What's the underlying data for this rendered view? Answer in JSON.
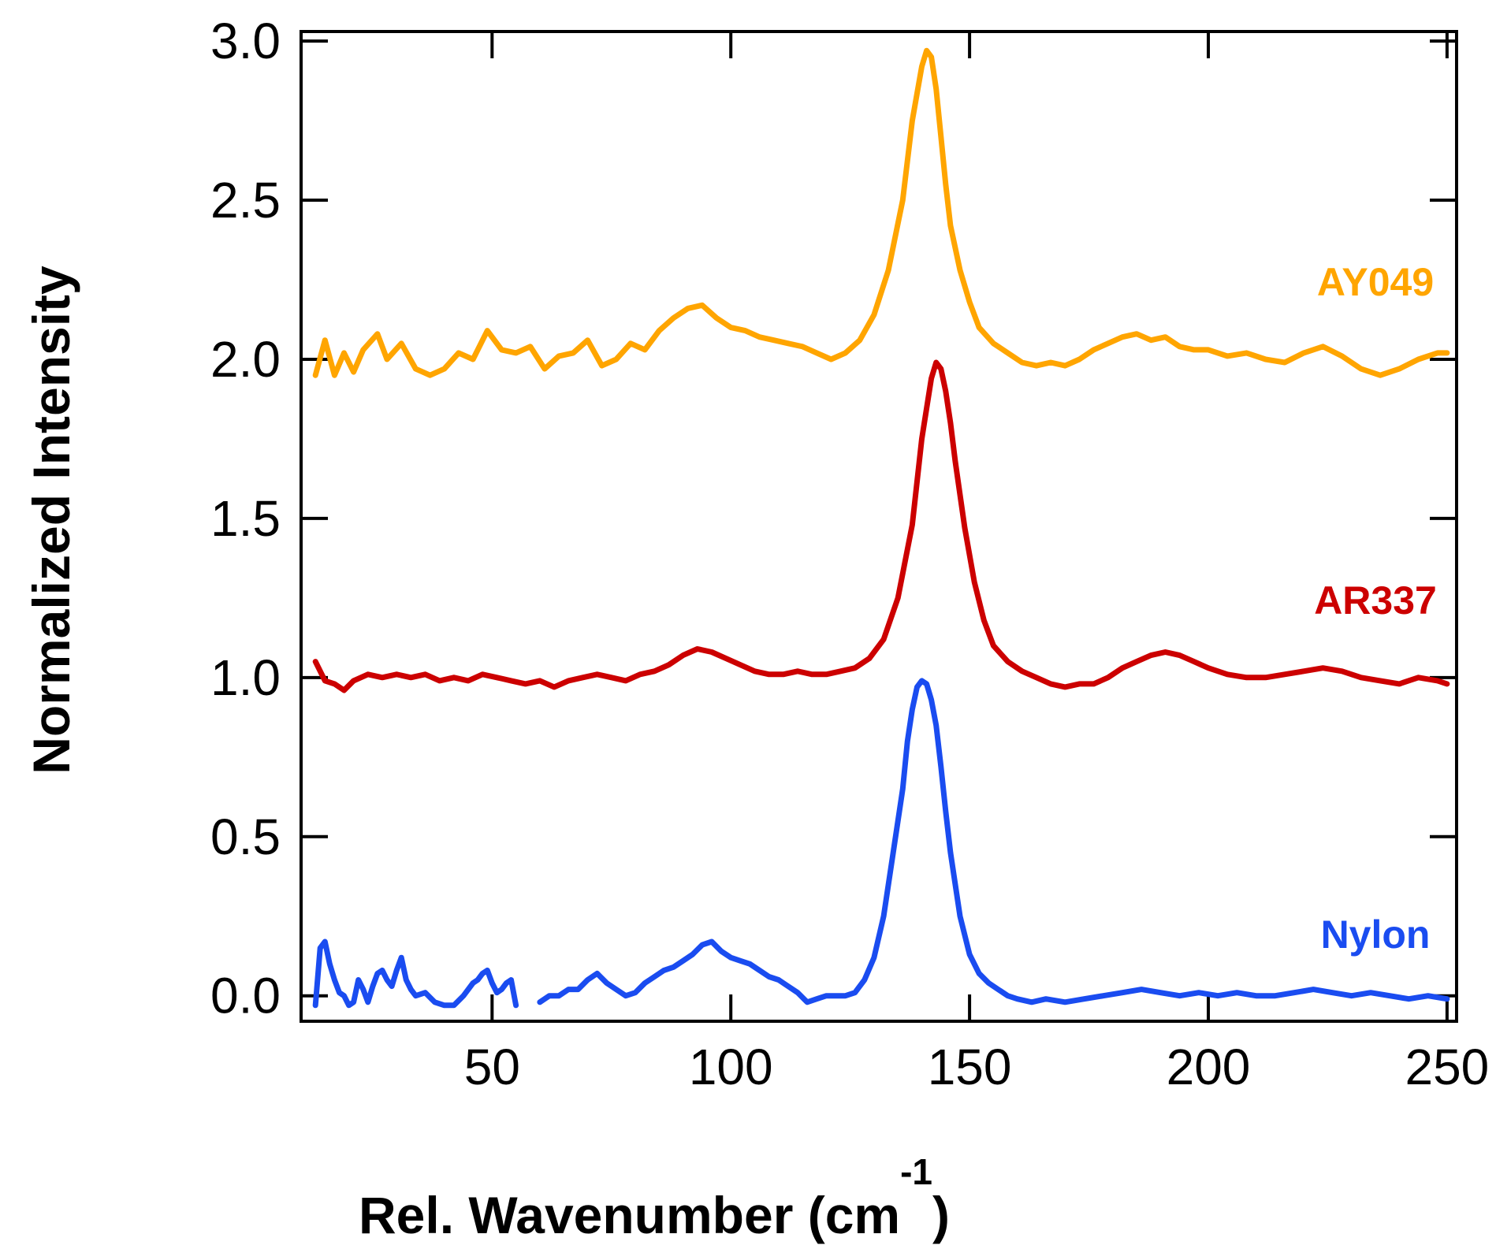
{
  "chart_data": {
    "type": "line",
    "title": "",
    "xlabel": "Rel. Wavenumber (cm",
    "xlabel_superscript": "-1",
    "xlabel_suffix": ")",
    "ylabel": "Normalized Intensity",
    "xlim": [
      10,
      252
    ],
    "ylim": [
      -0.08,
      3.03
    ],
    "xticks": [
      50,
      100,
      150,
      200,
      250
    ],
    "xtick_labels": [
      "50",
      "100",
      "150",
      "200",
      "250"
    ],
    "yticks": [
      0.0,
      0.5,
      1.0,
      1.5,
      2.0,
      2.5,
      3.0
    ],
    "ytick_labels": [
      "0.0",
      "0.5",
      "1.0",
      "1.5",
      "2.0",
      "2.5",
      "3.0"
    ],
    "grid": false,
    "series": [
      {
        "name": "AY049",
        "color": "#FFA500",
        "label_at": [
          235,
          2.2
        ],
        "x": [
          13,
          15,
          17,
          19,
          21,
          23,
          26,
          28,
          31,
          34,
          37,
          40,
          43,
          46,
          49,
          52,
          55,
          58,
          61,
          64,
          67,
          70,
          73,
          76,
          79,
          82,
          85,
          88,
          91,
          94,
          97,
          100,
          103,
          106,
          109,
          112,
          115,
          118,
          121,
          124,
          127,
          130,
          133,
          136,
          138,
          140,
          141,
          142,
          143,
          144,
          145,
          146,
          148,
          150,
          152,
          155,
          158,
          161,
          164,
          167,
          170,
          173,
          176,
          179,
          182,
          185,
          188,
          191,
          194,
          197,
          200,
          204,
          208,
          212,
          216,
          220,
          224,
          228,
          232,
          236,
          240,
          244,
          248,
          250
        ],
        "y": [
          1.95,
          2.06,
          1.95,
          2.02,
          1.96,
          2.03,
          2.08,
          2.0,
          2.05,
          1.97,
          1.95,
          1.97,
          2.02,
          2.0,
          2.09,
          2.03,
          2.02,
          2.04,
          1.97,
          2.01,
          2.02,
          2.06,
          1.98,
          2.0,
          2.05,
          2.03,
          2.09,
          2.13,
          2.16,
          2.17,
          2.13,
          2.1,
          2.09,
          2.07,
          2.06,
          2.05,
          2.04,
          2.02,
          2.0,
          2.02,
          2.06,
          2.14,
          2.28,
          2.5,
          2.75,
          2.92,
          2.97,
          2.95,
          2.85,
          2.7,
          2.55,
          2.42,
          2.28,
          2.18,
          2.1,
          2.05,
          2.02,
          1.99,
          1.98,
          1.99,
          1.98,
          2.0,
          2.03,
          2.05,
          2.07,
          2.08,
          2.06,
          2.07,
          2.04,
          2.03,
          2.03,
          2.01,
          2.02,
          2.0,
          1.99,
          2.02,
          2.04,
          2.01,
          1.97,
          1.95,
          1.97,
          2.0,
          2.02,
          2.02
        ]
      },
      {
        "name": "AR337",
        "color": "#CC0000",
        "label_at": [
          235,
          1.2
        ],
        "x": [
          13,
          15,
          17,
          19,
          21,
          24,
          27,
          30,
          33,
          36,
          39,
          42,
          45,
          48,
          51,
          54,
          57,
          60,
          63,
          66,
          69,
          72,
          75,
          78,
          81,
          84,
          87,
          90,
          93,
          96,
          99,
          102,
          105,
          108,
          111,
          114,
          117,
          120,
          123,
          126,
          129,
          132,
          135,
          138,
          140,
          142,
          143,
          144,
          145,
          146,
          147,
          149,
          151,
          153,
          155,
          158,
          161,
          164,
          167,
          170,
          173,
          176,
          179,
          182,
          185,
          188,
          191,
          194,
          197,
          200,
          204,
          208,
          212,
          216,
          220,
          224,
          228,
          232,
          236,
          240,
          244,
          248,
          250
        ],
        "y": [
          1.05,
          0.99,
          0.98,
          0.96,
          0.99,
          1.01,
          1.0,
          1.01,
          1.0,
          1.01,
          0.99,
          1.0,
          0.99,
          1.01,
          1.0,
          0.99,
          0.98,
          0.99,
          0.97,
          0.99,
          1.0,
          1.01,
          1.0,
          0.99,
          1.01,
          1.02,
          1.04,
          1.07,
          1.09,
          1.08,
          1.06,
          1.04,
          1.02,
          1.01,
          1.01,
          1.02,
          1.01,
          1.01,
          1.02,
          1.03,
          1.06,
          1.12,
          1.25,
          1.48,
          1.75,
          1.94,
          1.99,
          1.97,
          1.9,
          1.8,
          1.68,
          1.47,
          1.3,
          1.18,
          1.1,
          1.05,
          1.02,
          1.0,
          0.98,
          0.97,
          0.98,
          0.98,
          1.0,
          1.03,
          1.05,
          1.07,
          1.08,
          1.07,
          1.05,
          1.03,
          1.01,
          1.0,
          1.0,
          1.01,
          1.02,
          1.03,
          1.02,
          1.0,
          0.99,
          0.98,
          1.0,
          0.99,
          0.98
        ]
      },
      {
        "name": "Nylon",
        "color": "#1A4CF0",
        "label_at": [
          235,
          0.15
        ],
        "x": [
          13,
          14,
          15,
          16,
          17,
          18,
          19,
          20,
          21,
          22,
          23,
          24,
          25,
          26,
          27,
          28,
          29,
          30,
          31,
          32,
          33,
          34,
          36,
          38,
          40,
          42,
          44,
          46,
          47,
          48,
          49,
          50,
          51,
          52,
          53,
          54,
          55,
          58,
          60,
          62,
          64,
          66,
          68,
          70,
          72,
          74,
          76,
          78,
          80,
          82,
          84,
          86,
          88,
          90,
          92,
          94,
          96,
          98,
          100,
          102,
          104,
          106,
          108,
          110,
          112,
          114,
          116,
          118,
          120,
          122,
          124,
          126,
          128,
          130,
          132,
          134,
          136,
          137,
          138,
          139,
          140,
          141,
          142,
          143,
          144,
          145,
          146,
          148,
          150,
          152,
          154,
          156,
          158,
          160,
          163,
          166,
          170,
          174,
          178,
          182,
          186,
          190,
          194,
          198,
          202,
          206,
          210,
          214,
          218,
          222,
          226,
          230,
          234,
          238,
          242,
          246,
          250
        ],
        "y": [
          -0.03,
          0.15,
          0.17,
          0.1,
          0.05,
          0.01,
          0.0,
          -0.03,
          -0.02,
          0.05,
          0.02,
          -0.02,
          0.03,
          0.07,
          0.08,
          0.05,
          0.03,
          0.08,
          0.12,
          0.05,
          0.02,
          0.0,
          0.01,
          -0.02,
          -0.03,
          -0.03,
          0.0,
          0.04,
          0.05,
          0.07,
          0.08,
          0.04,
          0.01,
          0.02,
          0.04,
          0.05,
          -0.03,
          null,
          -0.02,
          0.0,
          0.0,
          0.02,
          0.02,
          0.05,
          0.07,
          0.04,
          0.02,
          0.0,
          0.01,
          0.04,
          0.06,
          0.08,
          0.09,
          0.11,
          0.13,
          0.16,
          0.17,
          0.14,
          0.12,
          0.11,
          0.1,
          0.08,
          0.06,
          0.05,
          0.03,
          0.01,
          -0.02,
          -0.01,
          0.0,
          0.0,
          0.0,
          0.01,
          0.05,
          0.12,
          0.25,
          0.45,
          0.65,
          0.8,
          0.9,
          0.97,
          0.99,
          0.98,
          0.93,
          0.85,
          0.72,
          0.58,
          0.45,
          0.25,
          0.13,
          0.07,
          0.04,
          0.02,
          0.0,
          -0.01,
          -0.02,
          -0.01,
          -0.02,
          -0.01,
          0.0,
          0.01,
          0.02,
          0.01,
          0.0,
          0.01,
          0.0,
          0.01,
          0.0,
          0.0,
          0.01,
          0.02,
          0.01,
          0.0,
          0.01,
          0.0,
          -0.01,
          0.0,
          -0.01
        ]
      }
    ]
  }
}
